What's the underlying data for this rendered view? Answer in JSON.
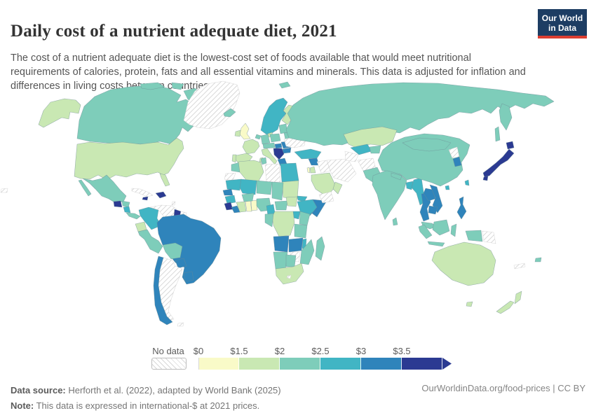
{
  "header": {
    "title": "Daily cost of a nutrient adequate diet, 2021",
    "subtitle": "The cost of a nutrient adequate diet is the lowest-cost set of foods available that would meet nutritional requirements of calories, protein, fats and all essential vitamins and minerals. This data is adjusted for inflation and differences in living costs between countries.",
    "logo": {
      "line1": "Our World",
      "line2": "in Data",
      "bg_color": "#1d3d63",
      "accent_color": "#dc3e31"
    }
  },
  "footer": {
    "source_label": "Data source:",
    "source_text": " Herforth et al. (2022), adapted by World Bank (2025)",
    "note_label": "Note:",
    "note_text": " This data is expressed in international-$ at 2021 prices.",
    "link": "OurWorldinData.org/food-prices | CC BY"
  },
  "chart_data": {
    "type": "heatmap",
    "variant": "choropleth-world-map",
    "title": "Daily cost of a nutrient adequate diet, 2021",
    "unit": "international-$ at 2021 prices",
    "legend_no_data_label": "No data",
    "legend_bins": [
      {
        "label": "$0",
        "range": "$0-$1.5",
        "color": "#f9fac8"
      },
      {
        "label": "$1.5",
        "range": "$1.5-$2",
        "color": "#c9e8b3"
      },
      {
        "label": "$2",
        "range": "$2-$2.5",
        "color": "#7ecdba"
      },
      {
        "label": "$2.5",
        "range": "$2.5-$3",
        "color": "#41b5c4"
      },
      {
        "label": "$3",
        "range": "$3-$3.5",
        "color": "#2f84bb"
      },
      {
        "label": "$3.5",
        "range": "$3.5+",
        "color": "#2b3a92"
      }
    ],
    "map_border_color": "#6d8a94",
    "no_data_border_color": "#c4c4c4",
    "countries": {
      "usa": {
        "name": "United States",
        "bin": 1
      },
      "canada": {
        "name": "Canada",
        "bin": 2
      },
      "greenland": {
        "name": "Greenland",
        "bin": "no_data"
      },
      "mexico": {
        "name": "Mexico",
        "bin": 2
      },
      "guatemala": {
        "name": "Guatemala",
        "bin": 5
      },
      "honduras": {
        "name": "Honduras",
        "bin": 2
      },
      "nicaragua": {
        "name": "Nicaragua",
        "bin": 3
      },
      "costa-rica-panama": {
        "name": "Costa Rica / Panama",
        "bin": 2
      },
      "cuba": {
        "name": "Cuba",
        "bin": "no_data"
      },
      "hispaniola": {
        "name": "Haiti / Dominican Republic",
        "bin": 5
      },
      "jamaica": {
        "name": "Jamaica",
        "bin": 5
      },
      "caribbean-islands": {
        "name": "Lesser Antilles",
        "bin": "no_data"
      },
      "pacific-islands": {
        "name": "Pacific islands",
        "bin": "no_data"
      },
      "colombia": {
        "name": "Colombia",
        "bin": 3
      },
      "venezuela": {
        "name": "Venezuela",
        "bin": "no_data"
      },
      "guyana": {
        "name": "Guyana",
        "bin": 5
      },
      "suriname": {
        "name": "Suriname",
        "bin": "no_data"
      },
      "ecuador": {
        "name": "Ecuador",
        "bin": 1
      },
      "peru": {
        "name": "Peru",
        "bin": 2
      },
      "brazil": {
        "name": "Brazil",
        "bin": 4
      },
      "bolivia": {
        "name": "Bolivia",
        "bin": 2
      },
      "paraguay": {
        "name": "Paraguay",
        "bin": 4
      },
      "uruguay": {
        "name": "Uruguay",
        "bin": 4
      },
      "chile": {
        "name": "Chile",
        "bin": 4
      },
      "argentina": {
        "name": "Argentina",
        "bin": "no_data"
      },
      "falkland-islands": {
        "name": "Falkland Islands",
        "bin": "no_data"
      },
      "iceland": {
        "name": "Iceland",
        "bin": 2
      },
      "uk": {
        "name": "United Kingdom",
        "bin": 0
      },
      "ireland": {
        "name": "Ireland",
        "bin": 1
      },
      "scandinavia": {
        "name": "Norway / Sweden",
        "bin": 3
      },
      "finland": {
        "name": "Finland",
        "bin": 1
      },
      "denmark": {
        "name": "Denmark",
        "bin": 1
      },
      "baltics": {
        "name": "Baltic states",
        "bin": 2
      },
      "belarus": {
        "name": "Belarus",
        "bin": 2
      },
      "ukraine": {
        "name": "Ukraine",
        "bin": "no_data"
      },
      "poland": {
        "name": "Poland",
        "bin": 2
      },
      "germany": {
        "name": "Germany",
        "bin": 2
      },
      "benelux": {
        "name": "Benelux",
        "bin": 2
      },
      "france": {
        "name": "France",
        "bin": 1
      },
      "spain": {
        "name": "Spain",
        "bin": 1
      },
      "portugal": {
        "name": "Portugal",
        "bin": 1
      },
      "italy": {
        "name": "Italy",
        "bin": 1
      },
      "czech-austria": {
        "name": "Czechia / Austria / Switzerland",
        "bin": 2
      },
      "hungary": {
        "name": "Hungary",
        "bin": 4
      },
      "romania": {
        "name": "Romania",
        "bin": 4
      },
      "bulgaria": {
        "name": "Bulgaria",
        "bin": 4
      },
      "balkans": {
        "name": "Western Balkans",
        "bin": 5
      },
      "greece": {
        "name": "Greece",
        "bin": 4
      },
      "russia": {
        "name": "Russia",
        "bin": 2
      },
      "svalbard": {
        "name": "Svalbard",
        "bin": 2
      },
      "turkey": {
        "name": "Turkey",
        "bin": 3
      },
      "syria": {
        "name": "Syria",
        "bin": 4
      },
      "iraq": {
        "name": "Iraq",
        "bin": "no_data"
      },
      "iran": {
        "name": "Iran",
        "bin": "no_data"
      },
      "israel": {
        "name": "Israel",
        "bin": 0
      },
      "jordan": {
        "name": "Jordan",
        "bin": 1
      },
      "saudi-arabia": {
        "name": "Saudi Arabia",
        "bin": 1
      },
      "yemen": {
        "name": "Yemen",
        "bin": "no_data"
      },
      "oman": {
        "name": "Oman",
        "bin": 1
      },
      "kazakhstan": {
        "name": "Kazakhstan",
        "bin": 1
      },
      "uzbekistan": {
        "name": "Uzbekistan",
        "bin": 3
      },
      "turkmenistan": {
        "name": "Turkmenistan",
        "bin": "no_data"
      },
      "kyrgyzstan-tajikistan": {
        "name": "Kyrgyzstan / Tajikistan",
        "bin": 2
      },
      "afghanistan": {
        "name": "Afghanistan",
        "bin": "no_data"
      },
      "pakistan": {
        "name": "Pakistan",
        "bin": 2
      },
      "india": {
        "name": "India",
        "bin": 2
      },
      "nepal": {
        "name": "Nepal",
        "bin": 2
      },
      "sri-lanka": {
        "name": "Sri Lanka",
        "bin": 2
      },
      "bangladesh": {
        "name": "Bangladesh",
        "bin": 3
      },
      "myanmar": {
        "name": "Myanmar",
        "bin": 3
      },
      "thailand": {
        "name": "Thailand",
        "bin": 4
      },
      "laos": {
        "name": "Laos",
        "bin": 4
      },
      "vietnam": {
        "name": "Vietnam",
        "bin": 4
      },
      "cambodia": {
        "name": "Cambodia",
        "bin": 4
      },
      "malaysia": {
        "name": "Malaysia",
        "bin": 2
      },
      "china": {
        "name": "China",
        "bin": 2
      },
      "mongolia": {
        "name": "Mongolia",
        "bin": 2
      },
      "north-korea": {
        "name": "North Korea",
        "bin": "no_data"
      },
      "south-korea": {
        "name": "South Korea",
        "bin": 4
      },
      "japan": {
        "name": "Japan",
        "bin": 5
      },
      "taiwan": {
        "name": "Taiwan",
        "bin": 3
      },
      "hainan": {
        "name": "Hainan (China)",
        "bin": 3
      },
      "philippines": {
        "name": "Philippines",
        "bin": 4
      },
      "indonesia": {
        "name": "Indonesia",
        "bin": 2
      },
      "papua-new-guinea": {
        "name": "Papua New Guinea",
        "bin": "no_data"
      },
      "new-caledonia": {
        "name": "New Caledonia",
        "bin": "no_data"
      },
      "australia": {
        "name": "Australia",
        "bin": 1
      },
      "new-zealand": {
        "name": "New Zealand",
        "bin": 1
      },
      "fiji": {
        "name": "Fiji",
        "bin": 2
      },
      "morocco": {
        "name": "Morocco",
        "bin": 2
      },
      "western-sahara": {
        "name": "Western Sahara",
        "bin": "no_data"
      },
      "algeria": {
        "name": "Algeria",
        "bin": 1
      },
      "tunisia": {
        "name": "Tunisia",
        "bin": 2
      },
      "libya": {
        "name": "Libya",
        "bin": "no_data"
      },
      "egypt": {
        "name": "Egypt",
        "bin": 3
      },
      "sudan": {
        "name": "Sudan",
        "bin": 1
      },
      "south-sudan": {
        "name": "South Sudan",
        "bin": 1
      },
      "mauritania": {
        "name": "Mauritania",
        "bin": 3
      },
      "mali": {
        "name": "Mali",
        "bin": 3
      },
      "niger": {
        "name": "Niger",
        "bin": 2
      },
      "chad": {
        "name": "Chad",
        "bin": 2
      },
      "senegal": {
        "name": "Senegal",
        "bin": 4
      },
      "guinea": {
        "name": "Guinea",
        "bin": 3
      },
      "sierra-leone": {
        "name": "Sierra Leone",
        "bin": 5
      },
      "liberia": {
        "name": "Liberia",
        "bin": 4
      },
      "ivory-coast": {
        "name": "Côte d'Ivoire",
        "bin": 1
      },
      "ghana": {
        "name": "Ghana",
        "bin": 0
      },
      "togo-benin": {
        "name": "Togo / Benin",
        "bin": 0
      },
      "burkina-faso": {
        "name": "Burkina Faso",
        "bin": 2
      },
      "nigeria": {
        "name": "Nigeria",
        "bin": 2
      },
      "cameroon": {
        "name": "Cameroon",
        "bin": 3
      },
      "central-african-republic": {
        "name": "Central African Republic",
        "bin": 2
      },
      "ethiopia": {
        "name": "Ethiopia",
        "bin": 3
      },
      "eritrea": {
        "name": "Eritrea",
        "bin": 3
      },
      "somalia": {
        "name": "Somalia",
        "bin": 4
      },
      "kenya": {
        "name": "Kenya",
        "bin": 2
      },
      "uganda": {
        "name": "Uganda",
        "bin": 3
      },
      "drc": {
        "name": "Democratic Republic of Congo",
        "bin": 1
      },
      "gabon-congo": {
        "name": "Gabon / Congo",
        "bin": 2
      },
      "tanzania": {
        "name": "Tanzania",
        "bin": 2
      },
      "angola": {
        "name": "Angola",
        "bin": 4
      },
      "zambia": {
        "name": "Zambia",
        "bin": 4
      },
      "malawi": {
        "name": "Malawi",
        "bin": 3
      },
      "mozambique": {
        "name": "Mozambique",
        "bin": 2
      },
      "zimbabwe": {
        "name": "Zimbabwe",
        "bin": "no_data"
      },
      "namibia": {
        "name": "Namibia",
        "bin": 2
      },
      "botswana": {
        "name": "Botswana",
        "bin": 2
      },
      "south-africa": {
        "name": "South Africa",
        "bin": 1
      },
      "lesotho": {
        "name": "Lesotho",
        "bin": "no_data"
      },
      "madagascar": {
        "name": "Madagascar",
        "bin": 2
      }
    }
  }
}
